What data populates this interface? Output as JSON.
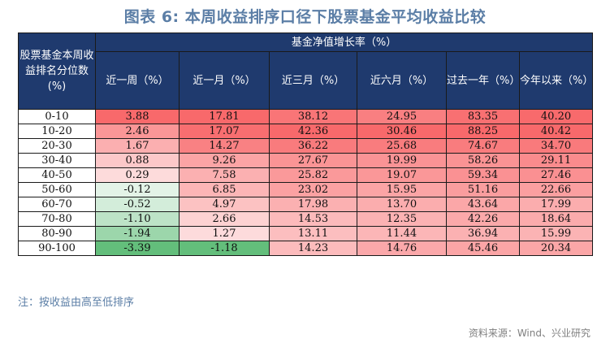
{
  "title": "图表 6:  本周收益排序口径下股票基金平均收益比较",
  "table": {
    "corner_header": "股票基金本周收益排名分位数(%)",
    "group_header": "基金净值增长率（%）",
    "columns": [
      "近一周（%）",
      "近一月（%）",
      "近三月（%）",
      "近六月（%）",
      "过去一年（%）",
      "今年以来（%）"
    ],
    "rows": [
      {
        "label": "0-10",
        "values": [
          "3.88",
          "17.81",
          "38.12",
          "24.95",
          "83.35",
          "40.20"
        ]
      },
      {
        "label": "10-20",
        "values": [
          "2.46",
          "17.07",
          "42.36",
          "30.46",
          "88.25",
          "40.42"
        ]
      },
      {
        "label": "20-30",
        "values": [
          "1.67",
          "14.27",
          "36.22",
          "25.68",
          "74.67",
          "34.70"
        ]
      },
      {
        "label": "30-40",
        "values": [
          "0.88",
          "9.26",
          "27.67",
          "19.99",
          "58.26",
          "29.11"
        ]
      },
      {
        "label": "40-50",
        "values": [
          "0.29",
          "7.58",
          "25.82",
          "19.07",
          "59.34",
          "27.46"
        ]
      },
      {
        "label": "50-60",
        "values": [
          "-0.12",
          "6.85",
          "23.02",
          "15.95",
          "51.16",
          "22.66"
        ]
      },
      {
        "label": "60-70",
        "values": [
          "-0.52",
          "4.97",
          "17.98",
          "13.70",
          "43.64",
          "17.99"
        ]
      },
      {
        "label": "70-80",
        "values": [
          "-1.10",
          "2.66",
          "14.53",
          "12.35",
          "42.26",
          "18.64"
        ]
      },
      {
        "label": "80-90",
        "values": [
          "-1.94",
          "1.27",
          "13.11",
          "11.44",
          "36.94",
          "15.99"
        ]
      },
      {
        "label": "90-100",
        "values": [
          "-3.39",
          "-1.18",
          "14.23",
          "14.76",
          "45.46",
          "20.34"
        ]
      }
    ],
    "colors": {
      "header_bg": "#1f3a6e",
      "positive_max": "#f8696b",
      "neutral": "#ffffff",
      "negative_max": "#63be7b"
    }
  },
  "note": "注：按收益由高至低排序",
  "source": "资料来源：Wind、兴业研究"
}
